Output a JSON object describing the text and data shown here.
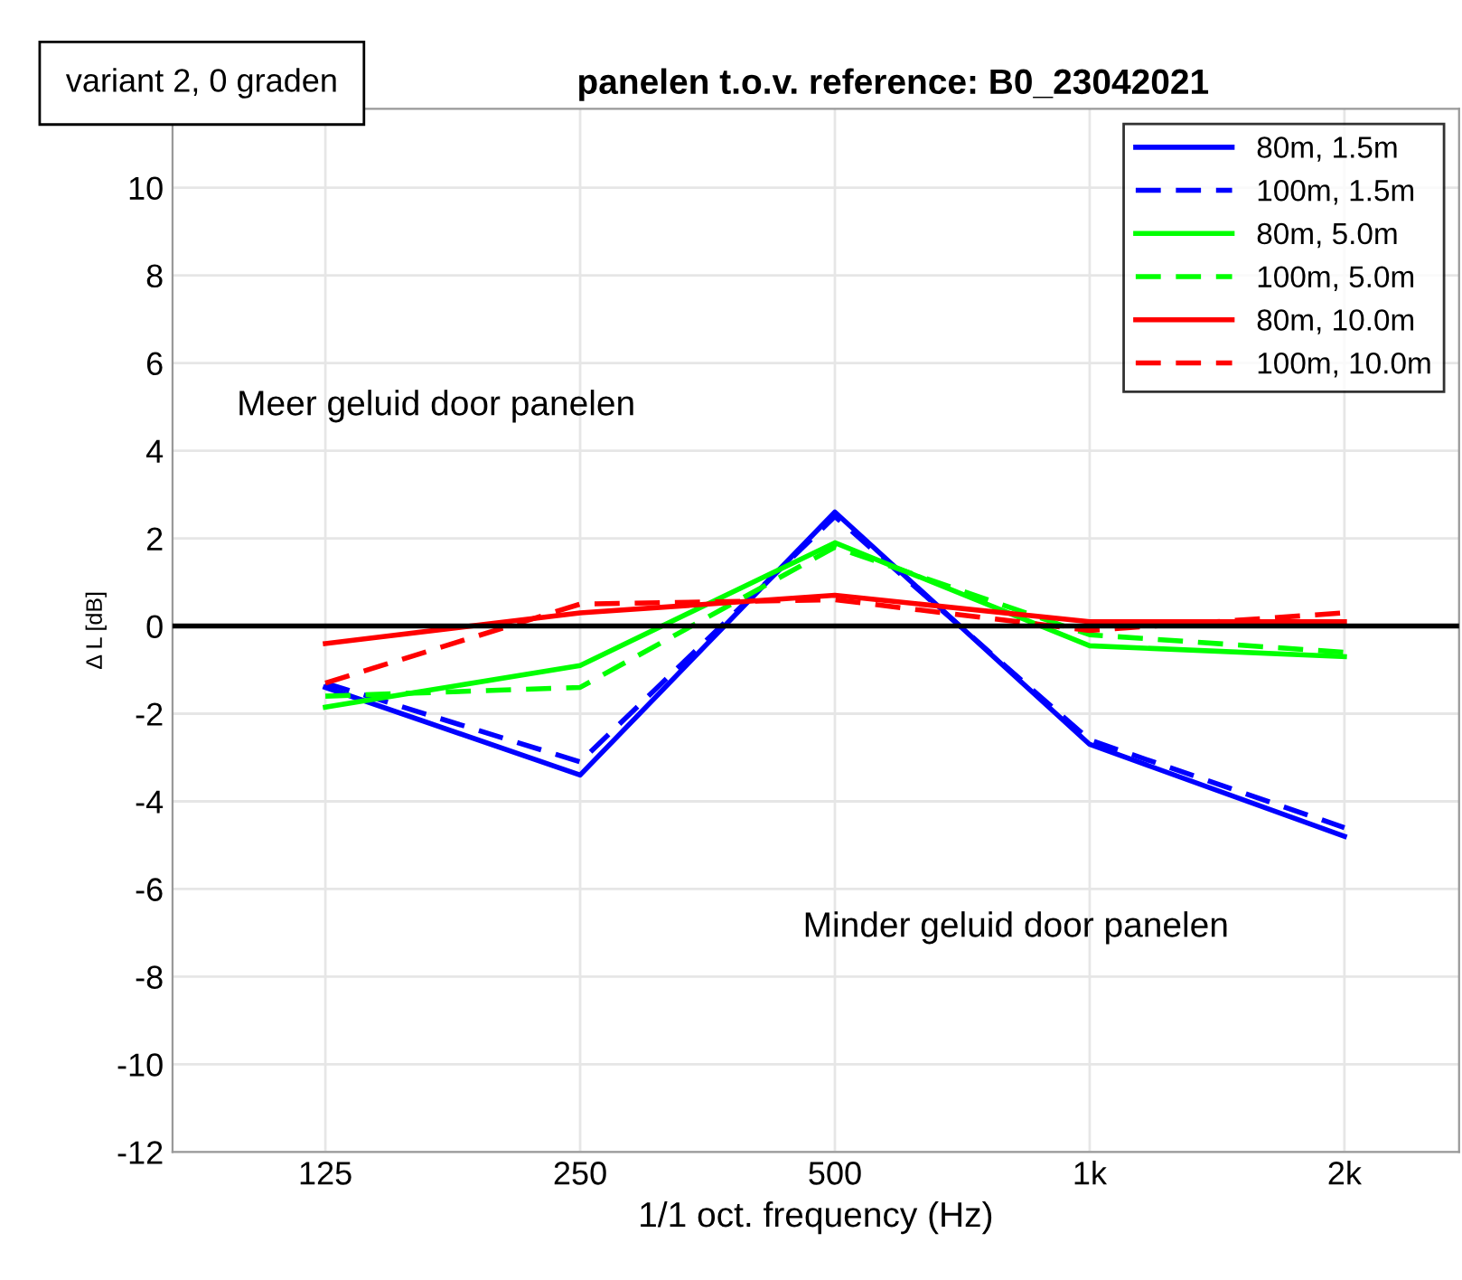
{
  "chart_data": {
    "type": "line",
    "title": "panelen t.o.v. reference: B0_23042021",
    "xlabel": "1/1 oct. frequency (Hz)",
    "ylabel": "Δ L [dB]",
    "categories": [
      "125",
      "250",
      "500",
      "1k",
      "2k"
    ],
    "series": [
      {
        "name": "80m, 1.5m",
        "color": "#0000ff",
        "line_style": "solid",
        "values": [
          -1.4,
          -3.4,
          2.6,
          -2.7,
          -4.8
        ]
      },
      {
        "name": "100m, 1.5m",
        "color": "#0000ff",
        "line_style": "dashed",
        "values": [
          -1.3,
          -3.1,
          2.5,
          -2.6,
          -4.6
        ]
      },
      {
        "name": "80m, 5.0m",
        "color": "#00ff00",
        "line_style": "solid",
        "values": [
          -1.85,
          -0.9,
          1.9,
          -0.45,
          -0.7
        ]
      },
      {
        "name": "100m, 5.0m",
        "color": "#00ff00",
        "line_style": "dashed",
        "values": [
          -1.6,
          -1.4,
          1.8,
          -0.2,
          -0.6
        ]
      },
      {
        "name": "80m, 10.0m",
        "color": "#ff0000",
        "line_style": "solid",
        "values": [
          -0.4,
          0.3,
          0.7,
          0.1,
          0.1
        ]
      },
      {
        "name": "100m, 10.0m",
        "color": "#ff0000",
        "line_style": "dashed",
        "values": [
          -1.3,
          0.5,
          0.6,
          -0.1,
          0.3
        ]
      }
    ],
    "ylim": [
      -12,
      11.8
    ],
    "yticks": [
      -12,
      -10,
      -8,
      -6,
      -4,
      -2,
      0,
      2,
      4,
      6,
      8,
      10
    ],
    "ref_lines": [
      {
        "axis": "y",
        "value": 0,
        "color": "#000000"
      }
    ],
    "annotations": [
      "Meer geluid door panelen",
      "Minder geluid door panelen",
      "variant 2, 0 graden"
    ],
    "grid": true,
    "legend": "top right",
    "marker": "none"
  }
}
